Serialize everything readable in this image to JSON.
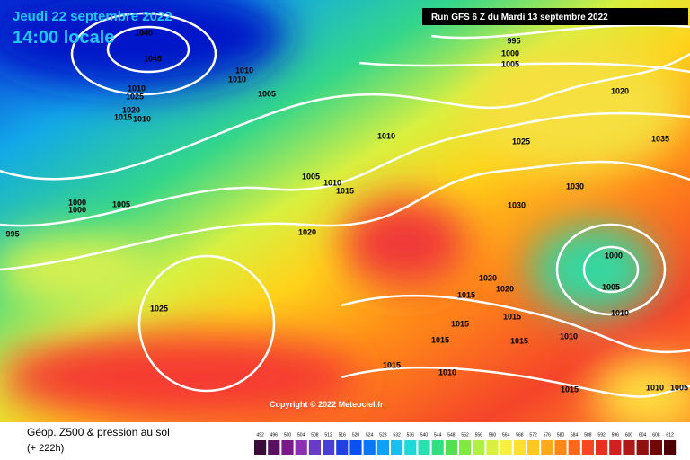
{
  "header": {
    "date": "Jeudi 22 septembre 2022",
    "time": "14:00 locale",
    "run": "Run GFS 6 Z du Mardi 13 septembre 2022"
  },
  "copyright": "Copyright © 2022 Meteociel.fr",
  "footer": {
    "title": "Géop. Z500 & pression au sol",
    "lead": "(+ 222h)"
  },
  "legend": [
    "492",
    "496",
    "500",
    "504",
    "508",
    "512",
    "516",
    "520",
    "524",
    "528",
    "532",
    "536",
    "540",
    "544",
    "548",
    "552",
    "556",
    "560",
    "564",
    "568",
    "572",
    "576",
    "580",
    "584",
    "588",
    "592",
    "596",
    "600",
    "604",
    "608",
    "612"
  ],
  "isobars": [
    "1040",
    "1045",
    "1010",
    "1010",
    "1010",
    "1025",
    "1020",
    "1015",
    "1010",
    "1005",
    "995",
    "1000",
    "1005",
    "1020",
    "1010",
    "1025",
    "1035",
    "1005",
    "1010",
    "1015",
    "1030",
    "1000",
    "1000",
    "1005",
    "1030",
    "995",
    "1020",
    "1000",
    "1020",
    "1020",
    "1005",
    "1015",
    "1025",
    "1010",
    "1015",
    "1015",
    "1015",
    "1015",
    "1010",
    "1015",
    "1010",
    "1015",
    "1010",
    "1005"
  ]
}
